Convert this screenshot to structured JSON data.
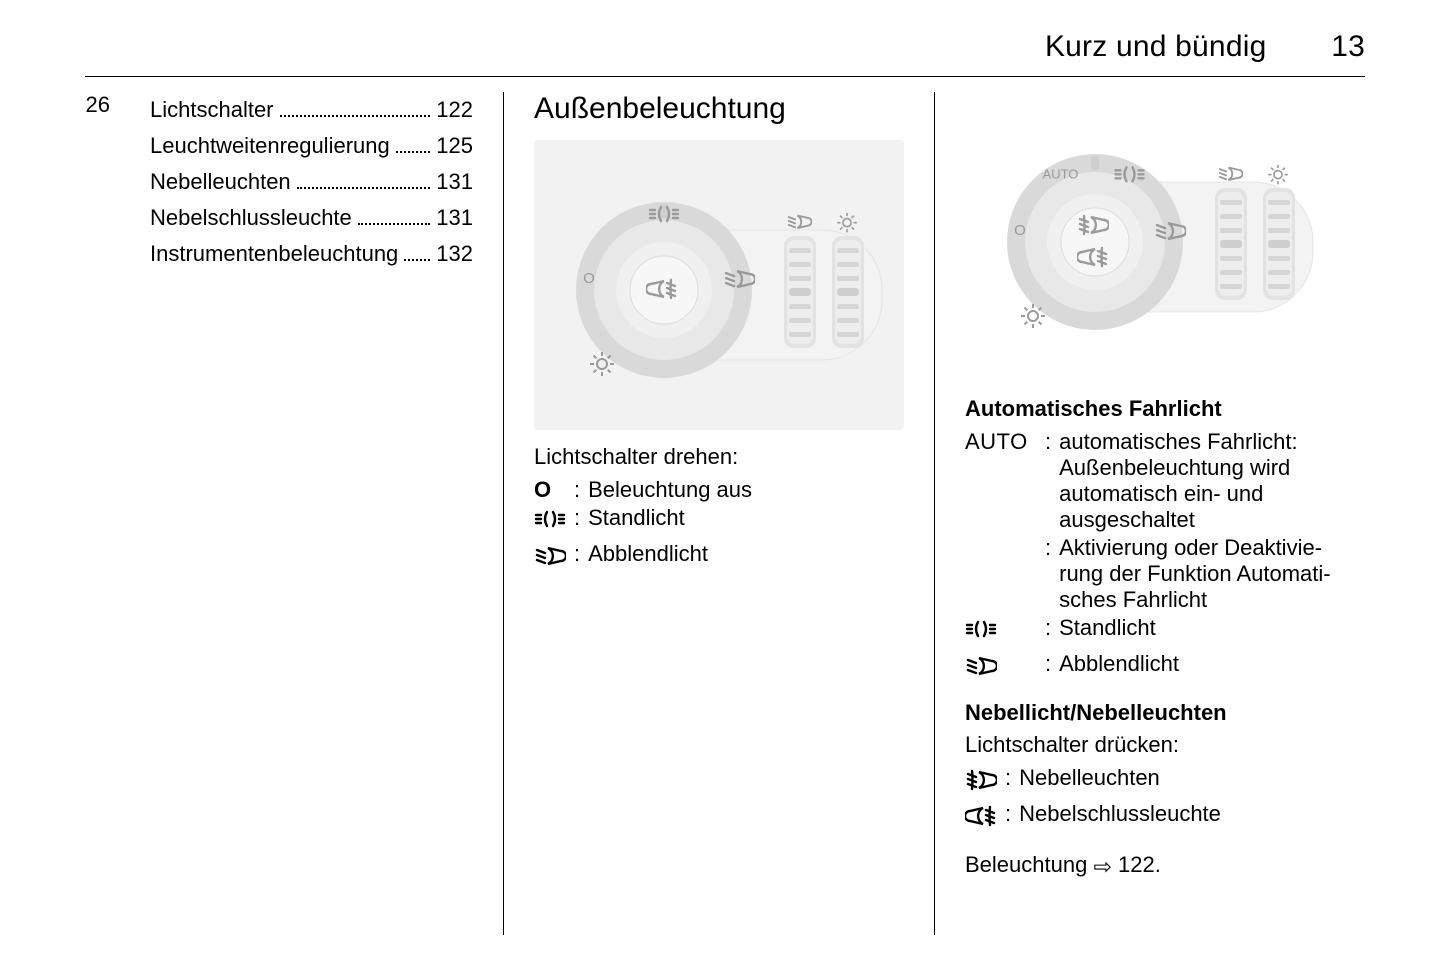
{
  "page": {
    "running_head": "Kurz und bündig",
    "number": "13"
  },
  "left": {
    "index": "26",
    "items": [
      {
        "label": "Lichtschalter",
        "page": "122"
      },
      {
        "label": "Leuchtweitenregulierung",
        "page": "125"
      },
      {
        "label": "Nebelleuchten",
        "page": "131"
      },
      {
        "label": "Nebelschlussleuchte",
        "page": "131"
      },
      {
        "label": "Instrumentenbeleuchtung",
        "page": "132"
      }
    ]
  },
  "center": {
    "title": "Außenbeleuchtung",
    "intro": "Lichtschalter drehen:",
    "rows": [
      {
        "sym": "O",
        "text": "Beleuchtung aus"
      },
      {
        "sym": "standlicht",
        "text": "Standlicht"
      },
      {
        "sym": "abblend",
        "text": "Abblendlicht"
      }
    ],
    "panel_style": {
      "bg": "#f2f2f2",
      "dial_outer": "#d9d9d9",
      "dial_mid": "#e8e8e8",
      "dial_inner": "#f0f0f0",
      "wheel": "#ededed",
      "wheel_ridge": "#d6d6d6",
      "slot": "#e2e2e2",
      "icon": "#9a9a9a",
      "labels": [
        "O",
        "standlicht",
        "abblend"
      ]
    }
  },
  "right": {
    "subtitle1": "Automatisches Fahrlicht",
    "auto_rows": [
      {
        "sym": "AUTO",
        "text": "automatisches Fahrlicht: Außenbeleuchtung wird automatisch ein- und ausgeschaltet"
      },
      {
        "sym": "",
        "text": "Aktivierung oder Deaktivie­rung der Funktion Automati­sches Fahrlicht"
      },
      {
        "sym": "standlicht",
        "text": "Standlicht"
      },
      {
        "sym": "abblend",
        "text": "Abblendlicht"
      }
    ],
    "subtitle2": "Nebellicht/Nebelleuchten",
    "push_intro": "Lichtschalter drücken:",
    "push_rows": [
      {
        "sym": "fogfront",
        "text": "Nebelleuchten"
      },
      {
        "sym": "fogrear",
        "text": "Nebelschlussleuchte"
      }
    ],
    "reference": "Beleuchtung ⇨ 122.",
    "panel_style": {
      "bg": "#ffffff",
      "dial_outer": "#d9d9d9",
      "dial_mid": "#e8e8e8",
      "dial_inner": "#f0f0f0",
      "wheel": "#ededed",
      "wheel_ridge": "#d6d6d6",
      "slot": "#e2e2e2",
      "icon": "#9a9a9a",
      "labels": [
        "O",
        "AUTO",
        "standlicht",
        "abblend"
      ]
    }
  }
}
